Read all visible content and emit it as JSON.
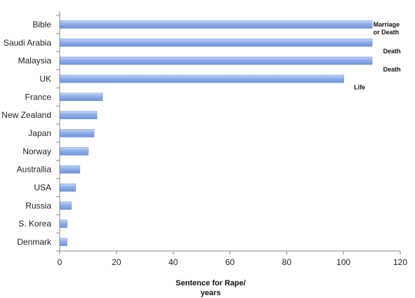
{
  "chart_data": {
    "type": "bar",
    "orientation": "horizontal",
    "categories": [
      "Bible",
      "Saudi Arabia",
      "Malaysia",
      "UK",
      "France",
      "New Zealand",
      "Japan",
      "Norway",
      "Australlia",
      "USA",
      "Russia",
      "S. Korea",
      "Denmark"
    ],
    "values": [
      110,
      110,
      110,
      100,
      15,
      13,
      12,
      10,
      7,
      5.5,
      4,
      2.5,
      2.5
    ],
    "xlim": [
      0,
      120
    ],
    "xticks": [
      0,
      20,
      40,
      60,
      80,
      100,
      120
    ],
    "xlabel_lines": [
      "Sentence for Rape/",
      "years"
    ],
    "ylabel": "",
    "title": "",
    "grid": false,
    "bar_color": "#8eaee9",
    "annotations": [
      {
        "category": "Bible",
        "lines": [
          "Marriage",
          "or Death"
        ]
      },
      {
        "category": "Saudi Arabia",
        "lines": [
          "Death"
        ]
      },
      {
        "category": "Malaysia",
        "lines": [
          "Death"
        ]
      },
      {
        "category": "UK",
        "lines": [
          "Life"
        ]
      }
    ]
  }
}
